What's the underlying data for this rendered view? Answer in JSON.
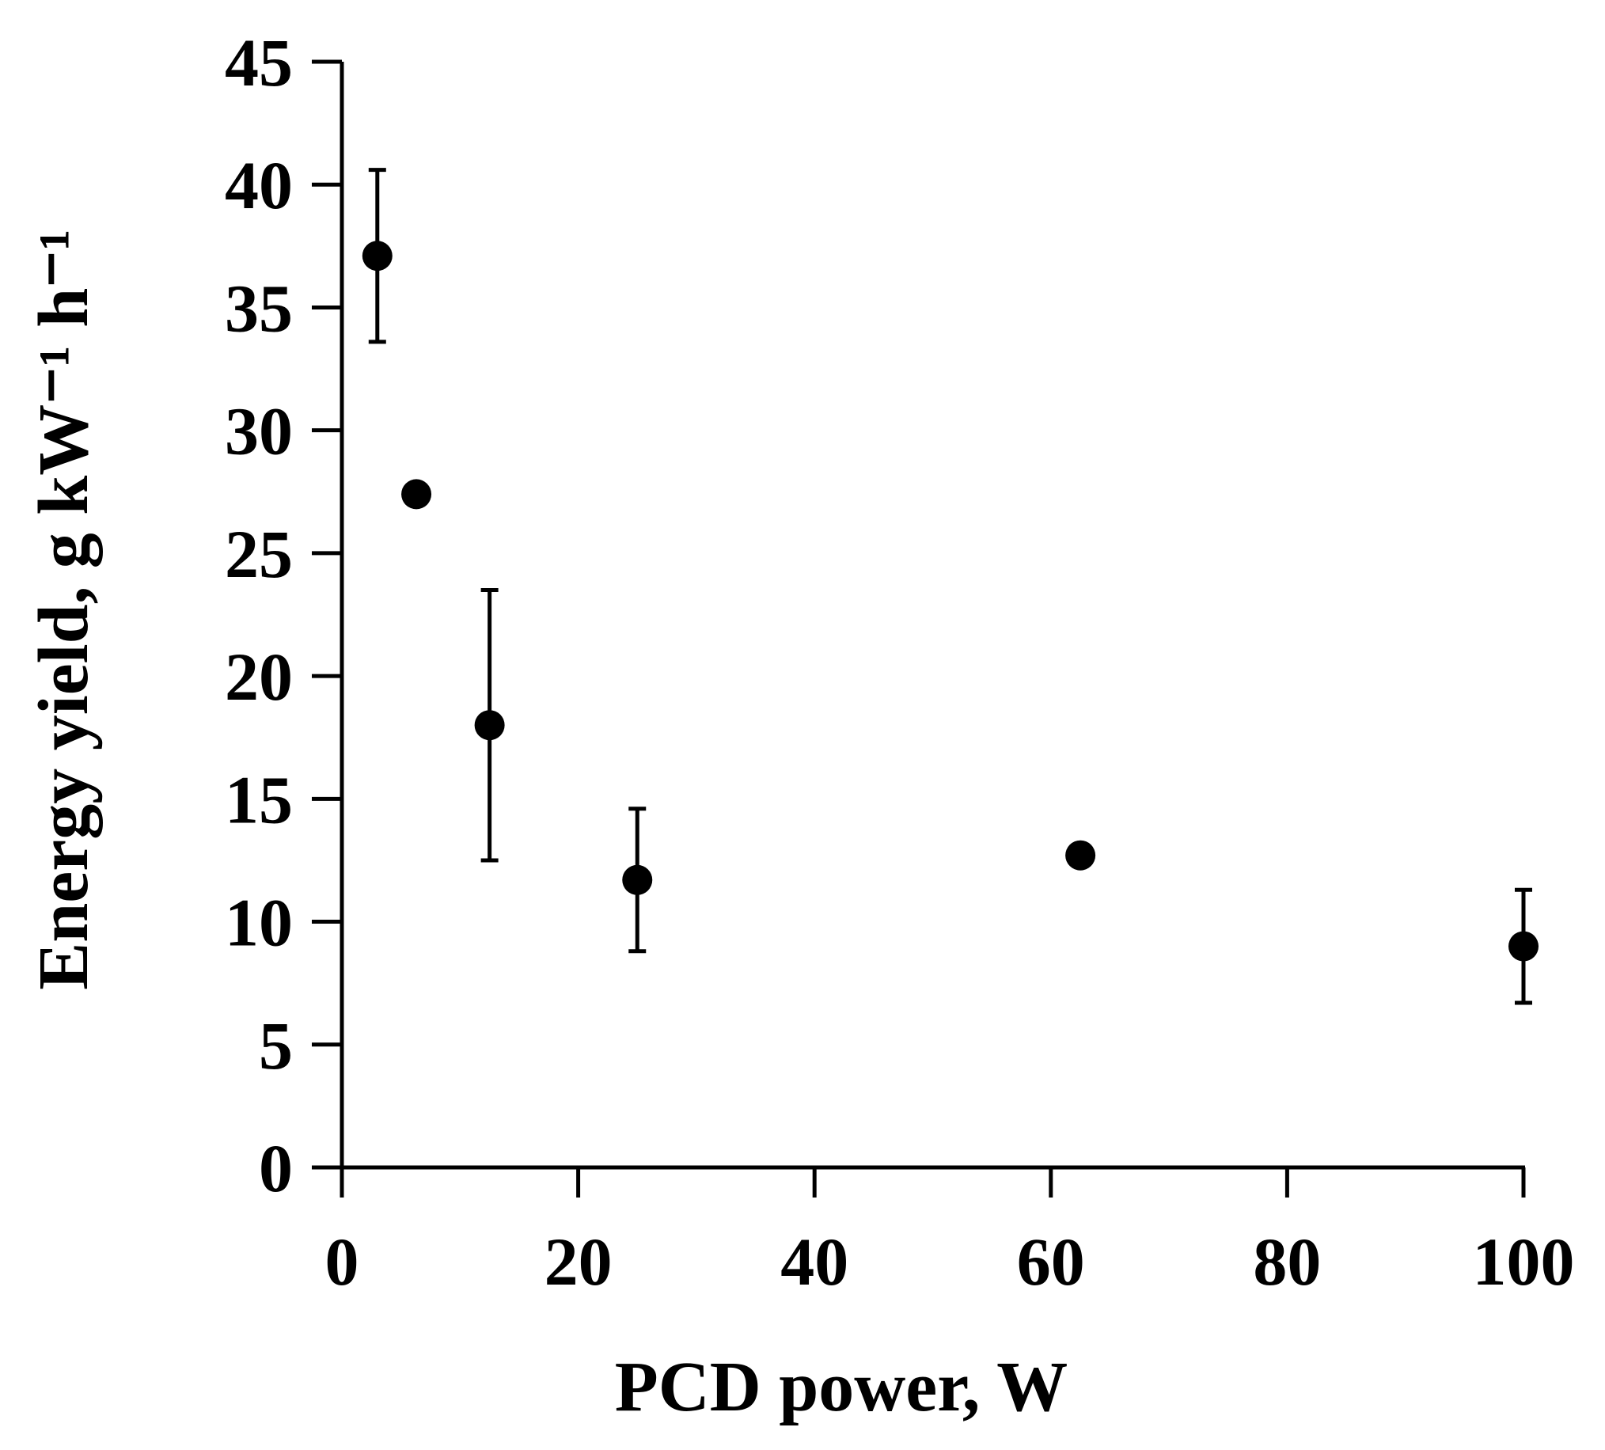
{
  "chart_data": {
    "type": "scatter",
    "xlabel": "PCD power, W",
    "ylabel": "Energy yield, g kW⁻¹ h⁻¹",
    "xlim": [
      0,
      100
    ],
    "ylim": [
      0,
      45
    ],
    "x_ticks": [
      0,
      20,
      40,
      60,
      80,
      100
    ],
    "y_ticks": [
      0,
      5,
      10,
      15,
      20,
      25,
      30,
      35,
      40,
      45
    ],
    "grid": false,
    "legend": "none",
    "marker_color": "#000000",
    "series": [
      {
        "x": [
          3,
          6.3,
          12.5,
          25,
          62.5,
          100
        ],
        "y": [
          37.1,
          27.4,
          18.0,
          11.7,
          12.7,
          9.0
        ],
        "error": [
          3.5,
          0.3,
          5.5,
          2.9,
          0.0,
          2.3
        ]
      }
    ]
  }
}
